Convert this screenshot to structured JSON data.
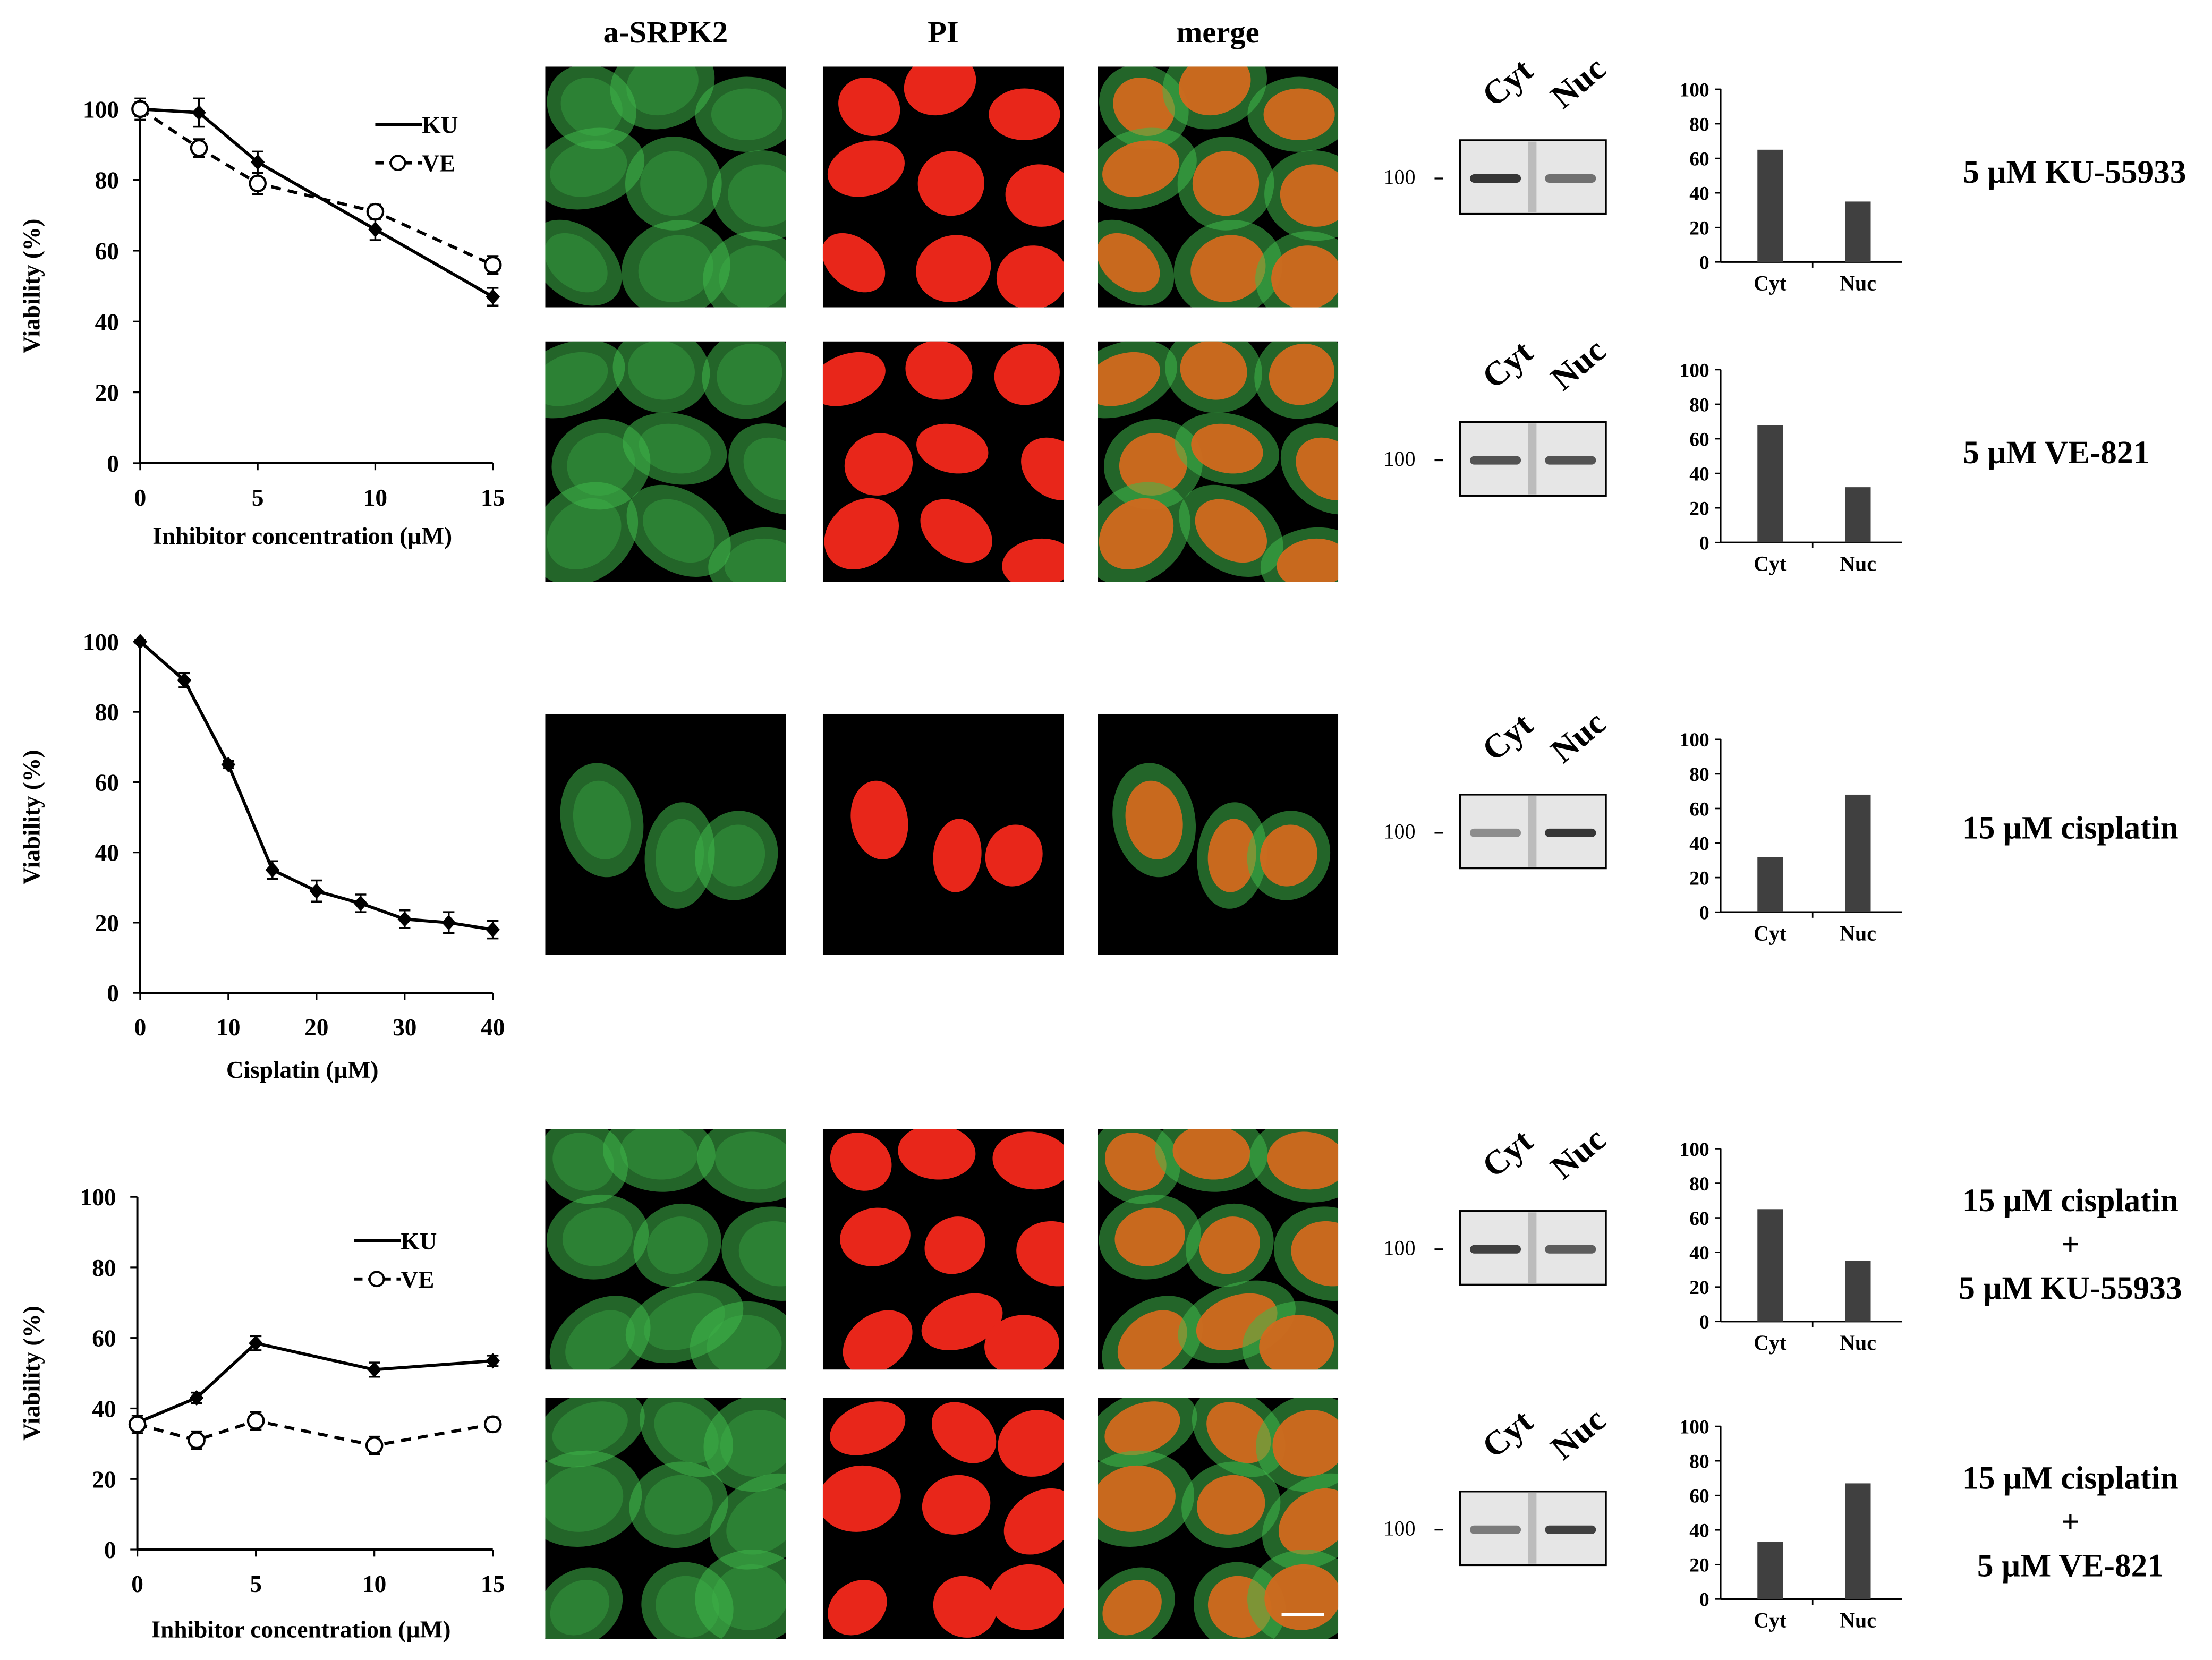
{
  "column_headers": [
    "a-SRPK2",
    "PI",
    "merge"
  ],
  "marker_label": "100",
  "lane_labels": [
    "Cyt",
    "Nuc"
  ],
  "treatments": [
    [
      "5 µM KU-55933"
    ],
    [
      "5 µM VE-821"
    ],
    [
      "15 µM cisplatin"
    ],
    [
      "15 µM cisplatin",
      "+",
      "5 µM KU-55933"
    ],
    [
      "15 µM cisplatin",
      "+",
      "5 µM VE-821"
    ]
  ],
  "colors": {
    "green": "#3fb84a",
    "red": "#e8261a",
    "bar": "#404040"
  },
  "chart_data": [
    {
      "type": "line",
      "xlabel": "Inhibitor concentration (µM)",
      "ylabel": "Viability (%)",
      "xlim": [
        0,
        15
      ],
      "ylim": [
        0,
        100
      ],
      "xticks": [
        0,
        5,
        10,
        15
      ],
      "yticks": [
        0,
        20,
        40,
        60,
        80,
        100
      ],
      "legend": "top-right",
      "series": [
        {
          "name": "KU",
          "style": "solid",
          "marker": "filled-diamond",
          "x": [
            0,
            2.5,
            5,
            10,
            15
          ],
          "y": [
            100,
            99,
            85,
            66,
            47
          ],
          "err": [
            2,
            4,
            3,
            3,
            2.5
          ]
        },
        {
          "name": "VE",
          "style": "dashed",
          "marker": "open-circle",
          "x": [
            0,
            2.5,
            5,
            10,
            15
          ],
          "y": [
            100,
            89,
            79,
            71,
            56
          ],
          "err": [
            3,
            2.5,
            3,
            2,
            2.5
          ]
        }
      ]
    },
    {
      "type": "line",
      "xlabel": "Cisplatin (µM)",
      "ylabel": "Viability (%)",
      "xlim": [
        0,
        40
      ],
      "ylim": [
        0,
        100
      ],
      "xticks": [
        0,
        10,
        20,
        30,
        40
      ],
      "yticks": [
        0,
        20,
        40,
        60,
        80,
        100
      ],
      "series": [
        {
          "style": "solid",
          "marker": "filled-diamond",
          "x": [
            0,
            5,
            10,
            15,
            20,
            25,
            30,
            35,
            40
          ],
          "y": [
            100,
            89,
            65,
            35,
            29,
            25.5,
            21,
            20,
            18
          ],
          "err": [
            0.5,
            2,
            1,
            2.5,
            3,
            2.5,
            2.5,
            3,
            2.5
          ]
        }
      ]
    },
    {
      "type": "line",
      "xlabel": "Inhibitor concentration (µM)",
      "ylabel": "Viability (%)",
      "xlim": [
        0,
        15
      ],
      "ylim": [
        0,
        100
      ],
      "xticks": [
        0,
        5,
        10,
        15
      ],
      "yticks": [
        0,
        20,
        40,
        60,
        80,
        100
      ],
      "legend": "top-right",
      "series": [
        {
          "name": "KU",
          "style": "solid",
          "marker": "filled-diamond",
          "x": [
            0,
            2.5,
            5,
            10,
            15
          ],
          "y": [
            36,
            43,
            58.5,
            51,
            53.5
          ],
          "err": [
            2,
            1.5,
            2,
            2,
            1.5
          ]
        },
        {
          "name": "VE",
          "style": "dashed",
          "marker": "open-circle",
          "x": [
            0,
            2.5,
            5,
            10,
            15
          ],
          "y": [
            35.5,
            31,
            36.5,
            29.5,
            35.5
          ],
          "err": [
            2.5,
            2.5,
            2.5,
            2.5,
            2
          ]
        }
      ]
    },
    {
      "type": "bar",
      "categories": [
        "Cyt",
        "Nuc"
      ],
      "values": [
        65,
        35
      ],
      "ylim": [
        0,
        100
      ],
      "yticks": [
        0,
        20,
        40,
        60,
        80,
        100
      ]
    },
    {
      "type": "bar",
      "categories": [
        "Cyt",
        "Nuc"
      ],
      "values": [
        68,
        32
      ],
      "ylim": [
        0,
        100
      ],
      "yticks": [
        0,
        20,
        40,
        60,
        80,
        100
      ]
    },
    {
      "type": "bar",
      "categories": [
        "Cyt",
        "Nuc"
      ],
      "values": [
        32,
        68
      ],
      "ylim": [
        0,
        100
      ],
      "yticks": [
        0,
        20,
        40,
        60,
        80,
        100
      ]
    },
    {
      "type": "bar",
      "categories": [
        "Cyt",
        "Nuc"
      ],
      "values": [
        65,
        35
      ],
      "ylim": [
        0,
        100
      ],
      "yticks": [
        0,
        20,
        40,
        60,
        80,
        100
      ]
    },
    {
      "type": "bar",
      "categories": [
        "Cyt",
        "Nuc"
      ],
      "values": [
        33,
        67
      ],
      "ylim": [
        0,
        100
      ],
      "yticks": [
        0,
        20,
        40,
        60,
        80,
        100
      ]
    }
  ]
}
